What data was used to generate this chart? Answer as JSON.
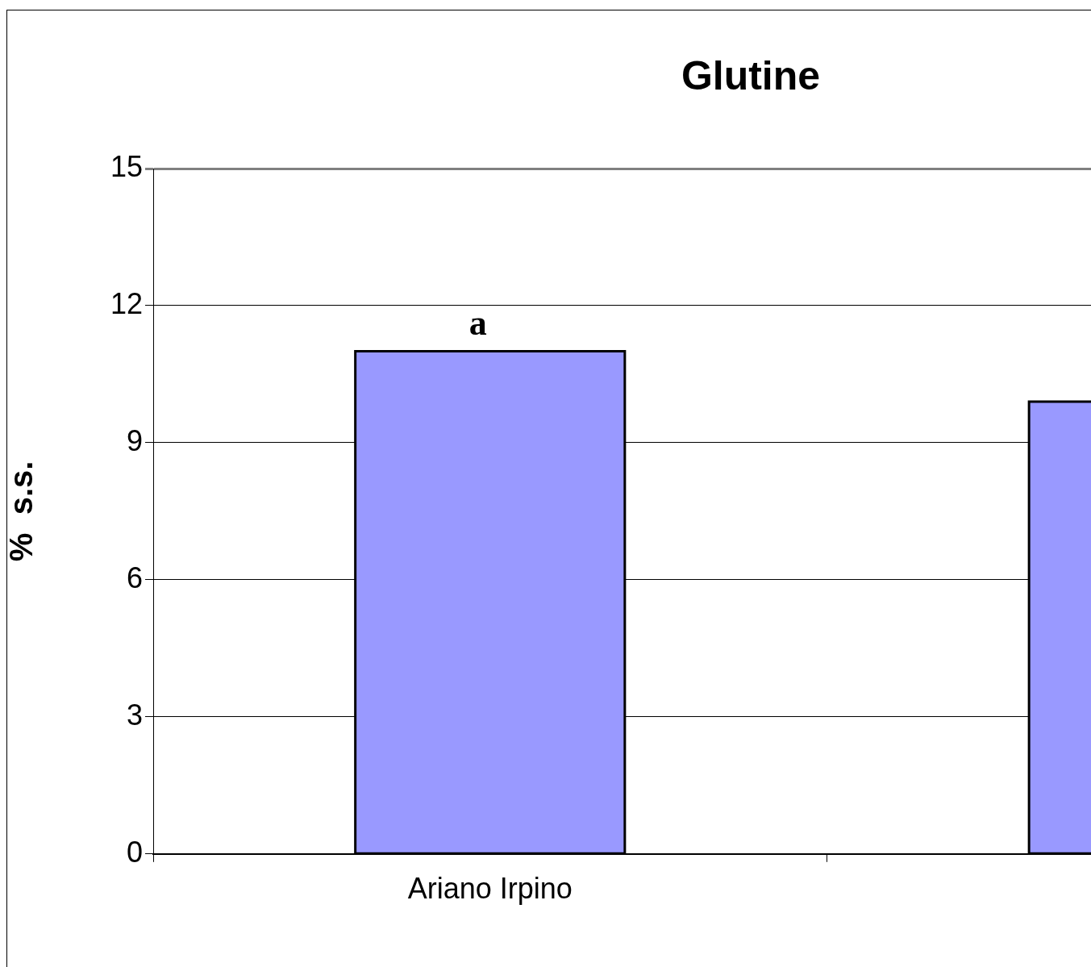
{
  "chart_data": {
    "type": "bar",
    "title": "Glutine",
    "ylabel": "%  s.s.",
    "categories": [
      "Ariano Irpino",
      null
    ],
    "values": [
      11,
      9.9
    ],
    "color": "#9999ff",
    "ylim": [
      0,
      15
    ],
    "yticks": [
      0,
      3,
      6,
      9,
      12,
      15
    ],
    "grid": "y",
    "legend": false,
    "annotations": [
      {
        "text": "a",
        "x": "Ariano Irpino",
        "y": 11
      }
    ]
  }
}
